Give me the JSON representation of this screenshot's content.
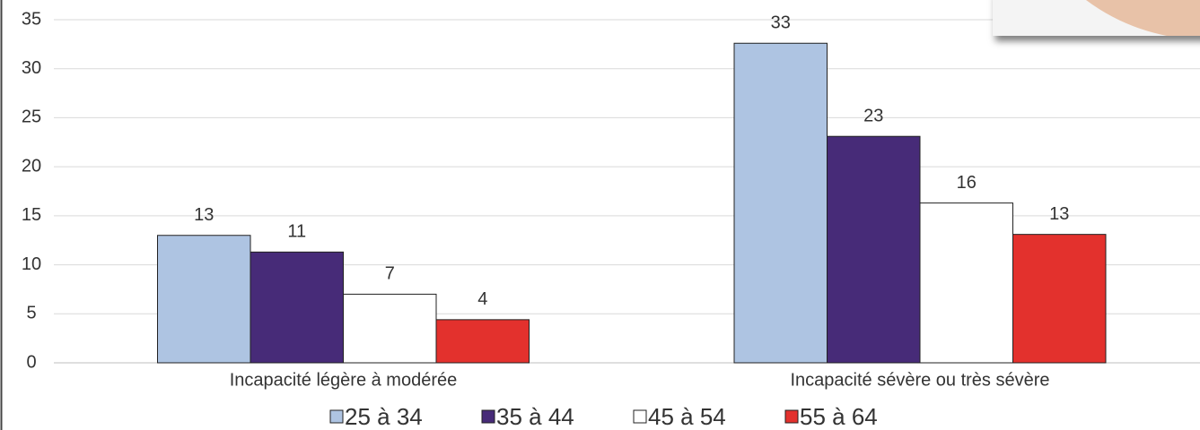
{
  "chart_data": {
    "type": "bar",
    "categories": [
      "Incapacité légère à modérée",
      "Incapacité sévère ou très sévère"
    ],
    "series": [
      {
        "name": "25 à 34",
        "color": "#aec4e2",
        "values": [
          13.0,
          32.6
        ],
        "value_labels": [
          "13",
          "33"
        ]
      },
      {
        "name": "35 à 44",
        "color": "#472b78",
        "values": [
          11.3,
          23.1
        ],
        "value_labels": [
          "11",
          "23"
        ]
      },
      {
        "name": "45 à 54",
        "color": "#ffffff",
        "values": [
          7.0,
          16.3
        ],
        "value_labels": [
          "7",
          "16"
        ]
      },
      {
        "name": "55 à 64",
        "color": "#e3312d",
        "values": [
          4.4,
          13.1
        ],
        "value_labels": [
          "4",
          "13"
        ]
      }
    ],
    "ylim": [
      0,
      35
    ],
    "yticks": [
      0,
      5,
      10,
      15,
      20,
      25,
      30,
      35
    ],
    "grid": true,
    "legend": "bottom"
  }
}
